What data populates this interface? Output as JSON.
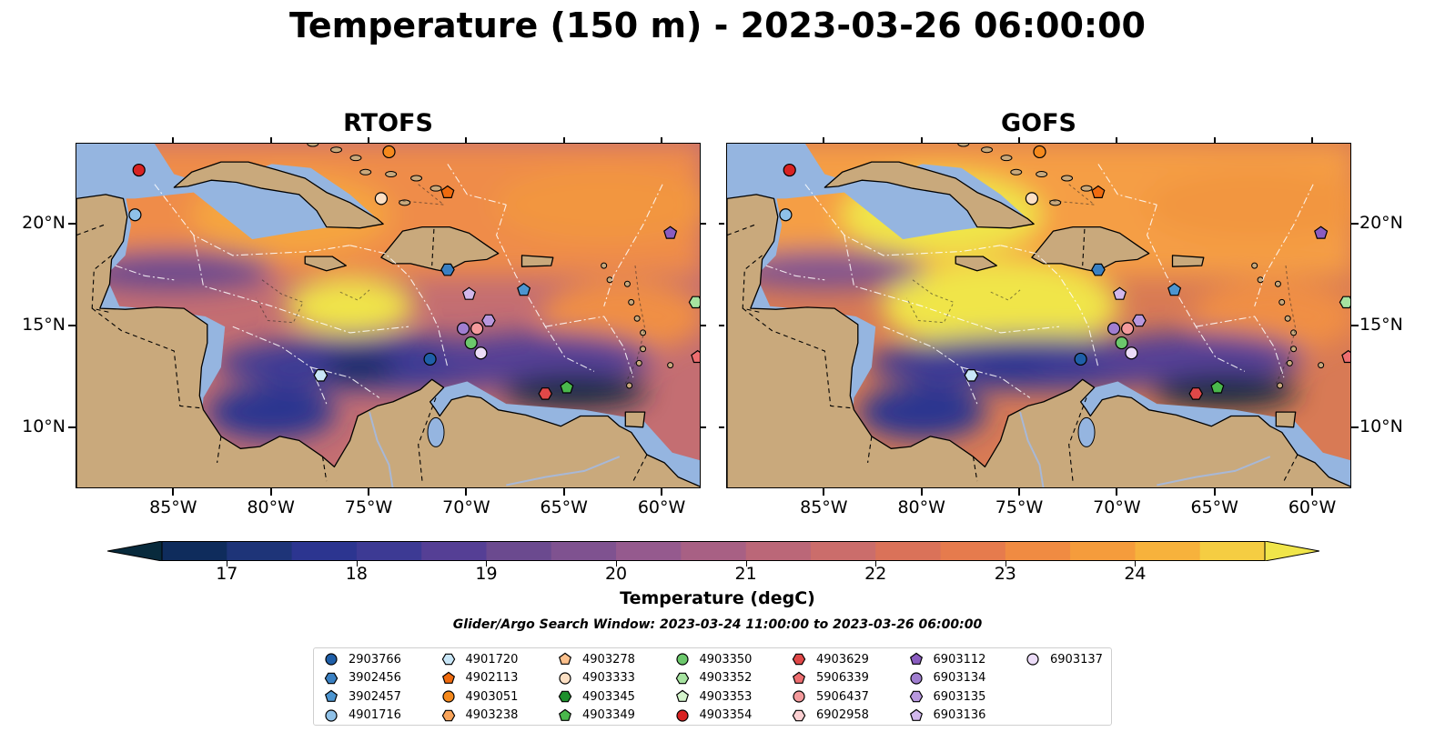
{
  "title": "Temperature (150 m) - 2023-03-26 06:00:00",
  "panels": [
    {
      "title": "RTOFS"
    },
    {
      "title": "GOFS"
    }
  ],
  "map": {
    "lon_range": [
      -90,
      -58
    ],
    "lat_range": [
      7,
      24
    ],
    "lon_ticks": [
      "85°W",
      "80°W",
      "75°W",
      "70°W",
      "65°W",
      "60°W"
    ],
    "lat_ticks": [
      "20°N",
      "15°N",
      "10°N"
    ],
    "land_color": "#c9a97c",
    "shelf_color": "#95b5e0",
    "colors": {
      "cold": "#082a3c",
      "mid": "#6b4d8f",
      "warm": "#f08f45",
      "hot": "#f0f050"
    }
  },
  "colorbar": {
    "label": "Temperature (degC)",
    "ticks": [
      "17",
      "18",
      "19",
      "20",
      "21",
      "22",
      "23",
      "24"
    ],
    "colors": [
      "#082a3c",
      "#0f2c5c",
      "#1e3478",
      "#2c3590",
      "#3d3a94",
      "#553f95",
      "#6b4a8f",
      "#7f5290",
      "#955a8e",
      "#a86084",
      "#bb6778",
      "#cb6d6b",
      "#da7259",
      "#e67b4d",
      "#f08b42",
      "#f59c3c",
      "#f7b23c",
      "#f5cd42",
      "#f0e54a"
    ]
  },
  "search_window": "Glider/Argo Search Window: 2023-03-24 11:00:00 to 2023-03-26 06:00:00",
  "legend": [
    {
      "id": "2903766",
      "color": "#1f5fa8",
      "shape": "circle"
    },
    {
      "id": "3902456",
      "color": "#3a80c2",
      "shape": "hexagon"
    },
    {
      "id": "3902457",
      "color": "#4c95d0",
      "shape": "pentagon"
    },
    {
      "id": "4901716",
      "color": "#8fc1e8",
      "shape": "circle"
    },
    {
      "id": "4901720",
      "color": "#c8e6f7",
      "shape": "hexagon"
    },
    {
      "id": "4902113",
      "color": "#f06b0e",
      "shape": "pentagon"
    },
    {
      "id": "4903051",
      "color": "#f5891c",
      "shape": "circle"
    },
    {
      "id": "4903238",
      "color": "#f9a45a",
      "shape": "hexagon"
    },
    {
      "id": "4903278",
      "color": "#fbc08c",
      "shape": "pentagon"
    },
    {
      "id": "4903333",
      "color": "#fde0c4",
      "shape": "circle"
    },
    {
      "id": "4903345",
      "color": "#1d8f2c",
      "shape": "hexagon"
    },
    {
      "id": "4903349",
      "color": "#4ab84c",
      "shape": "pentagon"
    },
    {
      "id": "4903350",
      "color": "#6cc86c",
      "shape": "circle"
    },
    {
      "id": "4903352",
      "color": "#a6e3a0",
      "shape": "hexagon"
    },
    {
      "id": "4903353",
      "color": "#d4f4cc",
      "shape": "pentagon"
    },
    {
      "id": "4903354",
      "color": "#d82222",
      "shape": "circle"
    },
    {
      "id": "4903629",
      "color": "#e04848",
      "shape": "hexagon"
    },
    {
      "id": "5906339",
      "color": "#ee6e70",
      "shape": "pentagon"
    },
    {
      "id": "5906437",
      "color": "#f49a9c",
      "shape": "circle"
    },
    {
      "id": "6902958",
      "color": "#fcd0d2",
      "shape": "hexagon"
    },
    {
      "id": "6903112",
      "color": "#8a5cc0",
      "shape": "pentagon"
    },
    {
      "id": "6903134",
      "color": "#a07ed0",
      "shape": "circle"
    },
    {
      "id": "6903135",
      "color": "#b898de",
      "shape": "hexagon"
    },
    {
      "id": "6903136",
      "color": "#d2b8ec",
      "shape": "pentagon"
    },
    {
      "id": "6903137",
      "color": "#ecdcf8",
      "shape": "circle"
    }
  ],
  "floats": [
    {
      "lon": -86.8,
      "lat": 22.7,
      "color": "#d82222",
      "shape": "circle"
    },
    {
      "lon": -87.0,
      "lat": 20.5,
      "color": "#8fc1e8",
      "shape": "circle"
    },
    {
      "lon": -74.0,
      "lat": 23.6,
      "color": "#f5891c",
      "shape": "circle"
    },
    {
      "lon": -74.4,
      "lat": 21.3,
      "color": "#fde0c4",
      "shape": "circle"
    },
    {
      "lon": -71.0,
      "lat": 21.6,
      "color": "#f06b0e",
      "shape": "pentagon"
    },
    {
      "lon": -71.0,
      "lat": 17.8,
      "color": "#3a80c2",
      "shape": "hexagon"
    },
    {
      "lon": -59.6,
      "lat": 19.6,
      "color": "#8a5cc0",
      "shape": "pentagon"
    },
    {
      "lon": -69.9,
      "lat": 16.6,
      "color": "#d2b8ec",
      "shape": "pentagon"
    },
    {
      "lon": -67.1,
      "lat": 16.8,
      "color": "#4c95d0",
      "shape": "pentagon"
    },
    {
      "lon": -58.3,
      "lat": 16.2,
      "color": "#a6e3a0",
      "shape": "hexagon"
    },
    {
      "lon": -70.2,
      "lat": 14.9,
      "color": "#a07ed0",
      "shape": "circle"
    },
    {
      "lon": -69.5,
      "lat": 14.9,
      "color": "#f49a9c",
      "shape": "circle"
    },
    {
      "lon": -68.9,
      "lat": 15.3,
      "color": "#b898de",
      "shape": "hexagon"
    },
    {
      "lon": -69.8,
      "lat": 14.2,
      "color": "#6cc86c",
      "shape": "circle"
    },
    {
      "lon": -69.3,
      "lat": 13.7,
      "color": "#ecdcf8",
      "shape": "circle"
    },
    {
      "lon": -71.9,
      "lat": 13.4,
      "color": "#1f5fa8",
      "shape": "circle"
    },
    {
      "lon": -77.5,
      "lat": 12.6,
      "color": "#c8e6f7",
      "shape": "hexagon"
    },
    {
      "lon": -66.0,
      "lat": 11.7,
      "color": "#e04848",
      "shape": "hexagon"
    },
    {
      "lon": -64.9,
      "lat": 12.0,
      "color": "#4ab84c",
      "shape": "pentagon"
    },
    {
      "lon": -58.2,
      "lat": 13.5,
      "color": "#ee6e70",
      "shape": "pentagon"
    }
  ]
}
